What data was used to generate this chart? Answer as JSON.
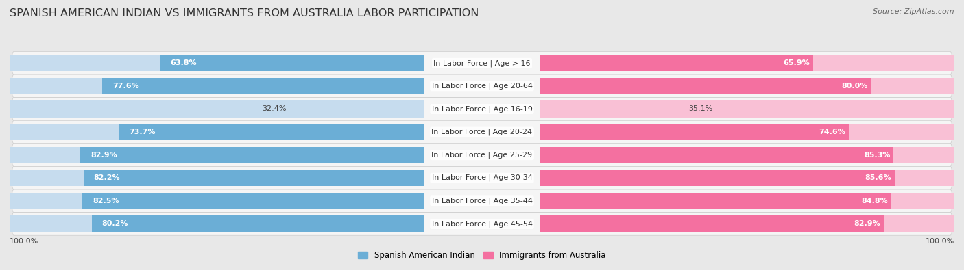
{
  "title": "Spanish American Indian vs Immigrants from Australia Labor Participation",
  "source": "Source: ZipAtlas.com",
  "categories": [
    "In Labor Force | Age > 16",
    "In Labor Force | Age 20-64",
    "In Labor Force | Age 16-19",
    "In Labor Force | Age 20-24",
    "In Labor Force | Age 25-29",
    "In Labor Force | Age 30-34",
    "In Labor Force | Age 35-44",
    "In Labor Force | Age 45-54"
  ],
  "left_values": [
    63.8,
    77.6,
    32.4,
    73.7,
    82.9,
    82.2,
    82.5,
    80.2
  ],
  "right_values": [
    65.9,
    80.0,
    35.1,
    74.6,
    85.3,
    85.6,
    84.8,
    82.9
  ],
  "left_color": "#6baed6",
  "right_color": "#f470a0",
  "left_color_light": "#c6dcee",
  "right_color_light": "#f9c0d5",
  "label_left": "Spanish American Indian",
  "label_right": "Immigrants from Australia",
  "bg_color": "#e8e8e8",
  "row_bg_color": "#f5f5f5",
  "max_val": 100.0,
  "title_fontsize": 11.5,
  "cat_fontsize": 8,
  "value_fontsize": 8,
  "axis_label_fontsize": 8,
  "legend_fontsize": 8.5
}
